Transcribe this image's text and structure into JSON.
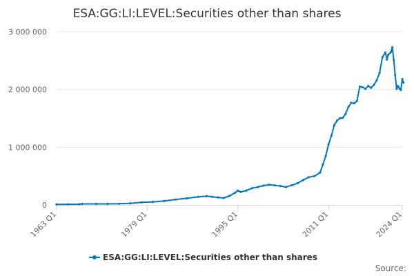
{
  "colors": {
    "series": "#0077bb",
    "grid": "#e6e6e6",
    "axis": "#ccd6eb",
    "text": "#333333",
    "tick_text": "#666666"
  },
  "chart_data": {
    "type": "line",
    "title": "ESA:GG:LI:LEVEL:Securities other than shares",
    "xlabel": "",
    "ylabel": "",
    "xlim": [
      1963.0,
      2024.0
    ],
    "ylim": [
      0,
      3000000
    ],
    "y_ticks": [
      {
        "value": 0,
        "label": "0"
      },
      {
        "value": 1000000,
        "label": "1 000 000"
      },
      {
        "value": 2000000,
        "label": "2 000 000"
      },
      {
        "value": 3000000,
        "label": "3 000 000"
      }
    ],
    "x_ticks": [
      {
        "value": 1963.0,
        "label": "1963 Q1"
      },
      {
        "value": 1979.0,
        "label": "1979 Q1"
      },
      {
        "value": 1995.0,
        "label": "1995 Q1"
      },
      {
        "value": 2011.0,
        "label": "2011 Q1"
      },
      {
        "value": 2024.0,
        "label": "2024 Q1"
      }
    ],
    "grid": true,
    "legend_position": "bottom-center",
    "legend": "ESA:GG:LI:LEVEL:Securities other than shares",
    "credits": "Source:",
    "series": [
      {
        "name": "ESA:GG:LI:LEVEL:Securities other than shares",
        "points": [
          [
            1963.0,
            10000
          ],
          [
            1965.0,
            11000
          ],
          [
            1967.0,
            12000
          ],
          [
            1967.5,
            18000
          ],
          [
            1970.0,
            18000
          ],
          [
            1972.0,
            18000
          ],
          [
            1974.0,
            20000
          ],
          [
            1976.0,
            27000
          ],
          [
            1978.0,
            45000
          ],
          [
            1980.0,
            52000
          ],
          [
            1982.0,
            68000
          ],
          [
            1984.0,
            95000
          ],
          [
            1986.0,
            115000
          ],
          [
            1988.0,
            140000
          ],
          [
            1989.5,
            152000
          ],
          [
            1990.5,
            140000
          ],
          [
            1991.5,
            130000
          ],
          [
            1992.5,
            120000
          ],
          [
            1993.5,
            155000
          ],
          [
            1994.5,
            210000
          ],
          [
            1995.0,
            248000
          ],
          [
            1995.5,
            225000
          ],
          [
            1996.5,
            250000
          ],
          [
            1997.5,
            290000
          ],
          [
            1998.5,
            310000
          ],
          [
            1999.5,
            335000
          ],
          [
            2000.5,
            350000
          ],
          [
            2001.5,
            340000
          ],
          [
            2002.5,
            328000
          ],
          [
            2003.5,
            310000
          ],
          [
            2004.5,
            340000
          ],
          [
            2005.5,
            375000
          ],
          [
            2006.5,
            430000
          ],
          [
            2007.5,
            480000
          ],
          [
            2008.5,
            500000
          ],
          [
            2009.5,
            560000
          ],
          [
            2010.0,
            700000
          ],
          [
            2010.5,
            850000
          ],
          [
            2011.0,
            1050000
          ],
          [
            2011.5,
            1200000
          ],
          [
            2012.0,
            1380000
          ],
          [
            2012.5,
            1460000
          ],
          [
            2013.0,
            1500000
          ],
          [
            2013.5,
            1510000
          ],
          [
            2014.0,
            1580000
          ],
          [
            2014.5,
            1700000
          ],
          [
            2015.0,
            1770000
          ],
          [
            2015.5,
            1760000
          ],
          [
            2016.0,
            1800000
          ],
          [
            2016.5,
            2050000
          ],
          [
            2017.0,
            2040000
          ],
          [
            2017.5,
            2010000
          ],
          [
            2018.0,
            2060000
          ],
          [
            2018.5,
            2030000
          ],
          [
            2019.0,
            2080000
          ],
          [
            2019.5,
            2160000
          ],
          [
            2020.0,
            2290000
          ],
          [
            2020.5,
            2560000
          ],
          [
            2021.0,
            2640000
          ],
          [
            2021.3,
            2520000
          ],
          [
            2021.5,
            2600000
          ],
          [
            2022.0,
            2650000
          ],
          [
            2022.25,
            2730000
          ],
          [
            2022.5,
            2510000
          ],
          [
            2022.75,
            2250000
          ],
          [
            2023.0,
            2010000
          ],
          [
            2023.25,
            2060000
          ],
          [
            2023.5,
            2020000
          ],
          [
            2023.75,
            1990000
          ],
          [
            2024.0,
            2180000
          ],
          [
            2024.2,
            2120000
          ]
        ]
      }
    ]
  }
}
